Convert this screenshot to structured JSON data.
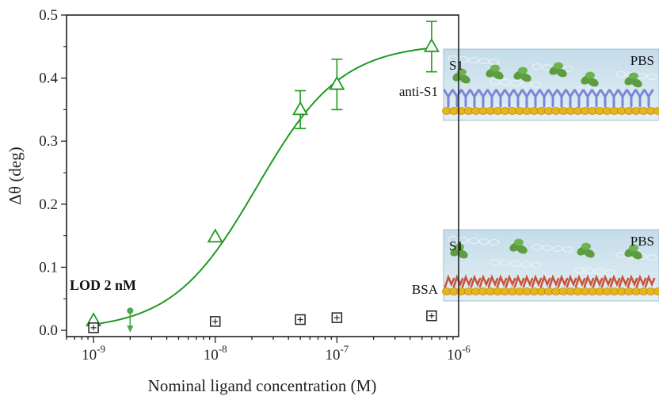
{
  "chart_data": {
    "type": "scatter",
    "xlabel": "Nominal ligand concentration (M)",
    "ylabel": "Δθ (deg)",
    "xscale": "log",
    "xlim": [
      6e-10,
      1e-06
    ],
    "ylim": [
      -0.01,
      0.5
    ],
    "x_ticks": [
      {
        "base": "10",
        "exp": "-9",
        "value": 1e-09
      },
      {
        "base": "10",
        "exp": "-8",
        "value": 1e-08
      },
      {
        "base": "10",
        "exp": "-7",
        "value": 1e-07
      },
      {
        "base": "10",
        "exp": "-6",
        "value": 1e-06
      }
    ],
    "y_ticks": [
      "0.0",
      "0.1",
      "0.2",
      "0.3",
      "0.4",
      "0.5"
    ],
    "y_tick_values": [
      0.0,
      0.1,
      0.2,
      0.3,
      0.4,
      0.5
    ],
    "series": [
      {
        "marker": "triangle",
        "color": "#1f9a1f",
        "x": [
          1e-09,
          1e-08,
          5e-08,
          1e-07,
          6e-07
        ],
        "y": [
          0.015,
          0.148,
          0.35,
          0.39,
          0.45
        ],
        "err": [
          0.0,
          0.0,
          0.03,
          0.04,
          0.04
        ]
      },
      {
        "marker": "square",
        "color": "#222222",
        "x": [
          1e-09,
          1e-08,
          5e-08,
          1e-07,
          6e-07
        ],
        "y": [
          0.004,
          0.014,
          0.017,
          0.02,
          0.023
        ]
      }
    ],
    "fit": {
      "color": "#1f9a1f",
      "model": "hill",
      "bottom": 0.0,
      "top": 0.455,
      "ec50": 2.2e-08,
      "hill_n": 1.25
    },
    "lod": {
      "label": "LOD 2 nM",
      "x": 2e-09,
      "y": 0.031,
      "color": "#4aa84a"
    },
    "grid": false
  },
  "panels": [
    {
      "analyte_label": "S1",
      "buffer_label": "PBS",
      "receptor_label": "anti-S1",
      "receptor_color": "#7b86d6"
    },
    {
      "analyte_label": "S1",
      "buffer_label": "PBS",
      "receptor_label": "BSA",
      "receptor_color": "#c8553d"
    }
  ],
  "colors": {
    "gold": "#e8b41a",
    "liquid": "#cfe3ec",
    "antigen": "#5c9e3f"
  }
}
